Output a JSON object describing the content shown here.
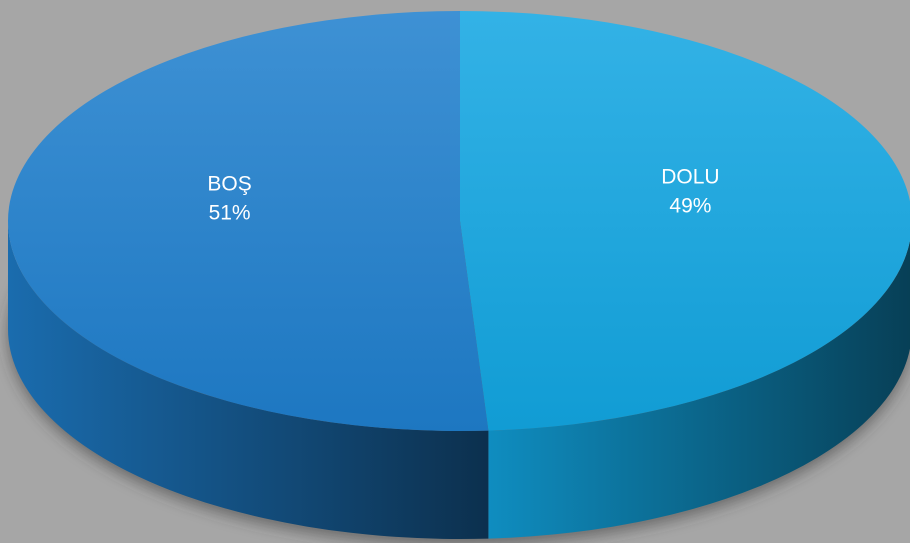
{
  "chart_data": {
    "type": "pie",
    "style": "3d",
    "title": "",
    "slices": [
      {
        "label": "DOLU",
        "value": 49,
        "percent_label": "49%",
        "color": "#12a6e2"
      },
      {
        "label": "BOŞ",
        "value": 51,
        "percent_label": "51%",
        "color": "#1f7fcd"
      }
    ],
    "start_angle": "12 o'clock",
    "direction": "clockwise",
    "legend": "none",
    "data_labels": "category and percentage inside slices"
  },
  "background_color": "#a6a6a6"
}
